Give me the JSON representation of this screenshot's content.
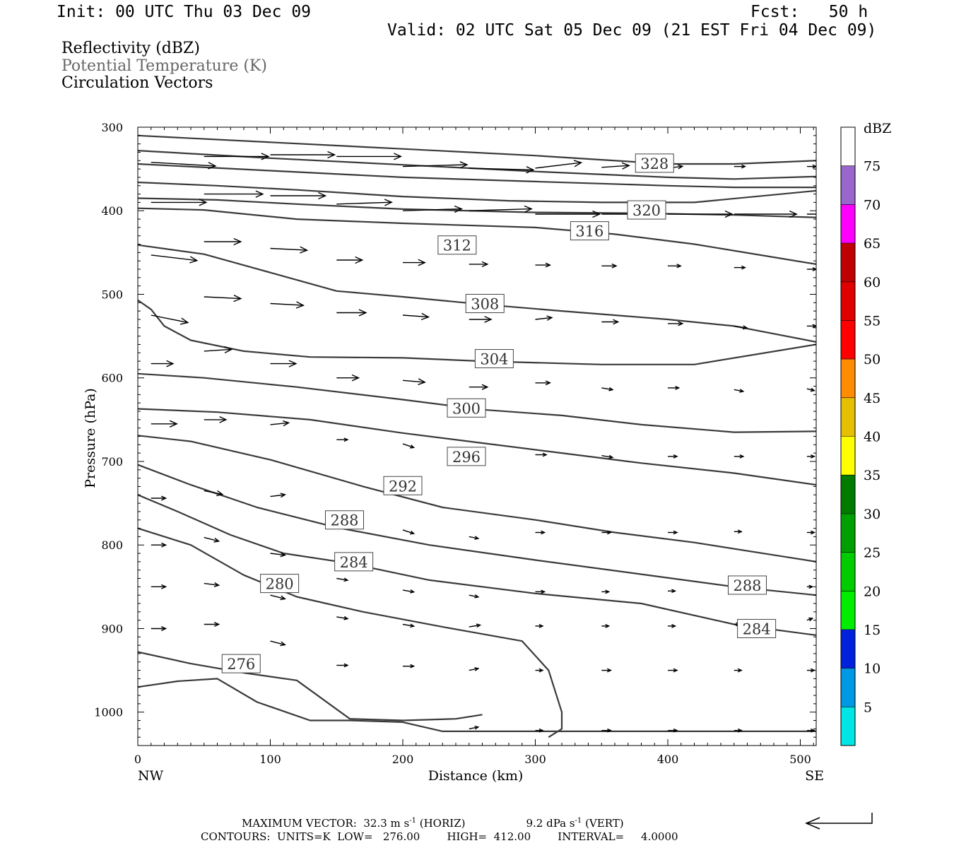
{
  "header": {
    "init": "Init: 00 UTC Thu 03 Dec 09",
    "fcst": "Fcst:   50 h",
    "valid": "Valid: 02 UTC Sat 05 Dec 09 (21 EST Fri 04 Dec 09)"
  },
  "fields": [
    "Reflectivity (dBZ)",
    "Potential Temperature (K)",
    "Circulation Vectors"
  ],
  "colors": {
    "contour": "#3a3a3a",
    "potential_temperature_text": "#666666",
    "dbz_scale": [
      "#00e5e5",
      "#0099e6",
      "#0022dd",
      "#00ee00",
      "#00cc00",
      "#00a000",
      "#007a00",
      "#ffff00",
      "#e6c000",
      "#ff8c00",
      "#ff0000",
      "#e00000",
      "#c00000",
      "#ff00ff",
      "#9966cc",
      "#ffffff"
    ]
  },
  "chart_data": {
    "type": "cross-section",
    "xlabel": "Distance (km)",
    "ylabel": "Pressure (hPa)",
    "xlim": [
      0,
      512
    ],
    "ylim": [
      300,
      1040
    ],
    "x_ticks": [
      0,
      100,
      200,
      300,
      400,
      500
    ],
    "y_ticks": [
      300,
      400,
      500,
      600,
      700,
      800,
      900,
      1000
    ],
    "x_end_labels": {
      "left": "NW",
      "right": "SE"
    },
    "colorbar": {
      "title": "dBZ",
      "labels": [
        "5",
        "10",
        "15",
        "20",
        "25",
        "30",
        "35",
        "40",
        "45",
        "50",
        "55",
        "60",
        "65",
        "70",
        "75"
      ]
    },
    "contour_labels": [
      {
        "text": "328",
        "x": 390,
        "p": 343
      },
      {
        "text": "320",
        "x": 384,
        "p": 399
      },
      {
        "text": "316",
        "x": 341,
        "p": 424
      },
      {
        "text": "312",
        "x": 241,
        "p": 441
      },
      {
        "text": "308",
        "x": 262,
        "p": 511
      },
      {
        "text": "304",
        "x": 269,
        "p": 577
      },
      {
        "text": "300",
        "x": 248,
        "p": 636
      },
      {
        "text": "296",
        "x": 248,
        "p": 694
      },
      {
        "text": "292",
        "x": 200,
        "p": 729
      },
      {
        "text": "288",
        "x": 156,
        "p": 770
      },
      {
        "text": "284",
        "x": 163,
        "p": 820
      },
      {
        "text": "280",
        "x": 107,
        "p": 846
      },
      {
        "text": "276",
        "x": 78,
        "p": 942
      },
      {
        "text": "288",
        "x": 460,
        "p": 848
      },
      {
        "text": "284",
        "x": 467,
        "p": 900
      }
    ],
    "isentropes": [
      {
        "x": [
          0,
          100,
          200,
          300,
          350,
          400,
          450,
          512
        ],
        "p": [
          310,
          318,
          326,
          334,
          339,
          344,
          344,
          340
        ]
      },
      {
        "x": [
          0,
          100,
          200,
          300,
          400,
          450,
          512
        ],
        "p": [
          328,
          337,
          345,
          353,
          360,
          362,
          359
        ]
      },
      {
        "x": [
          0,
          100,
          200,
          300,
          400,
          450,
          512
        ],
        "p": [
          344,
          352,
          360,
          365,
          370,
          372,
          372
        ]
      },
      {
        "x": [
          0,
          60,
          120,
          200,
          280,
          350,
          420,
          512
        ],
        "p": [
          366,
          370,
          375,
          383,
          388,
          390,
          390,
          376
        ]
      },
      {
        "x": [
          0,
          60,
          120,
          200,
          300,
          380,
          450,
          512
        ],
        "p": [
          385,
          387,
          392,
          398,
          402,
          403,
          405,
          408
        ]
      },
      {
        "x": [
          0,
          50,
          120,
          200,
          300,
          360,
          420,
          512
        ],
        "p": [
          397,
          399,
          410,
          415,
          420,
          428,
          440,
          464
        ]
      },
      {
        "x": [
          0,
          50,
          100,
          150,
          200,
          260,
          320,
          400,
          450,
          512
        ],
        "p": [
          441,
          452,
          474,
          496,
          503,
          512,
          520,
          530,
          538,
          557
        ]
      },
      {
        "x": [
          0,
          10,
          20,
          40,
          80,
          130,
          200,
          260,
          350,
          420,
          512
        ],
        "p": [
          507,
          518,
          538,
          555,
          568,
          575,
          576,
          580,
          584,
          584,
          560
        ]
      },
      {
        "x": [
          0,
          50,
          120,
          200,
          260,
          320,
          380,
          450,
          512
        ],
        "p": [
          595,
          600,
          611,
          626,
          638,
          645,
          656,
          665,
          664
        ]
      },
      {
        "x": [
          0,
          60,
          130,
          200,
          260,
          320,
          380,
          450,
          512
        ],
        "p": [
          637,
          641,
          650,
          666,
          678,
          690,
          702,
          714,
          728
        ]
      },
      {
        "x": [
          0,
          40,
          100,
          170,
          230,
          300,
          360,
          420,
          480,
          512
        ],
        "p": [
          669,
          676,
          698,
          730,
          755,
          770,
          785,
          797,
          812,
          820
        ]
      },
      {
        "x": [
          0,
          40,
          90,
          150,
          220,
          300,
          380,
          450,
          512
        ],
        "p": [
          704,
          728,
          755,
          779,
          800,
          818,
          835,
          850,
          860
        ]
      },
      {
        "x": [
          0,
          30,
          70,
          110,
          160,
          220,
          300,
          380,
          450,
          512
        ],
        "p": [
          740,
          760,
          788,
          810,
          822,
          842,
          858,
          870,
          895,
          908
        ]
      },
      {
        "x": [
          0,
          40,
          80,
          120,
          170,
          230,
          290,
          310,
          320,
          320,
          310
        ],
        "p": [
          780,
          800,
          836,
          862,
          880,
          898,
          915,
          950,
          1000,
          1020,
          1030
        ]
      },
      {
        "x": [
          0,
          40,
          80,
          120,
          160,
          200,
          240,
          260
        ],
        "p": [
          928,
          942,
          953,
          962,
          1008,
          1010,
          1008,
          1003
        ]
      },
      {
        "x": [
          0,
          30,
          60,
          90,
          130,
          160,
          200,
          230,
          512
        ],
        "p": [
          970,
          963,
          960,
          988,
          1010,
          1010,
          1012,
          1023,
          1023
        ]
      }
    ],
    "vectors": [
      {
        "x": [
          10,
          50,
          100,
          150,
          200,
          250,
          300,
          350,
          400,
          450,
          505
        ],
        "p": [
          342,
          335,
          333,
          335,
          347,
          349,
          349,
          348,
          349,
          347,
          347
        ],
        "u": [
          35,
          35,
          35,
          35,
          35,
          35,
          25,
          15,
          8,
          6,
          5
        ],
        "w": [
          2,
          0,
          0,
          0,
          -1,
          1,
          -3,
          -1,
          -1,
          0,
          0
        ]
      },
      {
        "x": [
          10,
          50,
          100,
          150,
          200,
          250,
          300,
          350,
          400,
          450,
          505
        ],
        "p": [
          390,
          380,
          382,
          392,
          400,
          400,
          404,
          404,
          404,
          404,
          404
        ],
        "u": [
          30,
          32,
          30,
          30,
          32,
          34,
          35,
          35,
          35,
          34,
          10
        ],
        "w": [
          0,
          0,
          0,
          -1,
          -1,
          -1,
          0,
          0,
          0,
          0,
          0
        ]
      },
      {
        "x": [
          10,
          50,
          100,
          150,
          200,
          250,
          300,
          350,
          400,
          450,
          505
        ],
        "p": [
          453,
          437,
          445,
          459,
          462,
          464,
          465,
          466,
          466,
          468,
          470
        ],
        "u": [
          25,
          20,
          20,
          14,
          12,
          10,
          8,
          8,
          7,
          6,
          5
        ],
        "w": [
          3,
          0,
          1,
          0,
          0,
          0,
          0,
          0,
          0,
          0,
          0
        ]
      },
      {
        "x": [
          10,
          50,
          100,
          150,
          200,
          250,
          300,
          350,
          400,
          450,
          505
        ],
        "p": [
          525,
          503,
          511,
          522,
          525,
          530,
          530,
          533,
          535,
          538,
          538
        ],
        "u": [
          20,
          20,
          18,
          16,
          14,
          12,
          9,
          9,
          8,
          7,
          5
        ],
        "w": [
          4,
          1,
          1,
          0,
          1,
          0,
          -1,
          0,
          0,
          1,
          0
        ]
      },
      {
        "x": [
          10,
          50,
          100,
          150,
          200,
          250,
          300,
          350,
          400,
          450,
          505
        ],
        "p": [
          583,
          568,
          583,
          600,
          603,
          611,
          606,
          612,
          612,
          614,
          613
        ],
        "u": [
          12,
          15,
          14,
          12,
          12,
          10,
          8,
          6,
          6,
          5,
          4
        ],
        "w": [
          0,
          -1,
          0,
          0,
          1,
          0,
          0,
          1,
          0,
          1,
          1
        ]
      },
      {
        "x": [
          10,
          50,
          100,
          150,
          200,
          250,
          300,
          350,
          400,
          450,
          505
        ],
        "p": [
          655,
          650,
          656,
          674,
          679,
          693,
          692,
          693,
          694,
          694,
          694
        ],
        "u": [
          14,
          12,
          10,
          6,
          6,
          5,
          6,
          6,
          5,
          5,
          4
        ],
        "w": [
          0,
          0,
          -1,
          0,
          2,
          1,
          0,
          1,
          0,
          0,
          0
        ]
      },
      {
        "x": [
          10,
          50,
          100,
          150,
          200,
          250,
          300,
          350,
          400,
          450,
          505
        ],
        "p": [
          744,
          735,
          742,
          768,
          782,
          790,
          785,
          785,
          785,
          784,
          785
        ],
        "u": [
          8,
          10,
          8,
          6,
          6,
          5,
          5,
          5,
          5,
          4,
          4
        ],
        "w": [
          0,
          2,
          -1,
          1,
          2,
          1,
          0,
          0,
          0,
          0,
          0
        ]
      },
      {
        "x": [
          10,
          50,
          100,
          150,
          200,
          250,
          300,
          350,
          400,
          450,
          505
        ],
        "p": [
          800,
          791,
          810,
          840,
          854,
          860,
          856,
          856,
          855,
          852,
          850
        ],
        "u": [
          8,
          8,
          8,
          6,
          6,
          5,
          5,
          4,
          4,
          3,
          3
        ],
        "w": [
          0,
          2,
          1,
          1,
          1,
          1,
          0,
          0,
          0,
          0,
          0
        ]
      },
      {
        "x": [
          10,
          50,
          100,
          150,
          200,
          250,
          300,
          350,
          400,
          450,
          505
        ],
        "p": [
          850,
          846,
          860,
          886,
          895,
          898,
          897,
          897,
          897,
          895,
          890
        ],
        "u": [
          8,
          8,
          8,
          6,
          6,
          6,
          4,
          4,
          4,
          3,
          3
        ],
        "w": [
          0,
          1,
          2,
          1,
          1,
          -1,
          0,
          0,
          0,
          0,
          -1
        ]
      },
      {
        "x": [
          10,
          50,
          100,
          150,
          200,
          250,
          300,
          350,
          400,
          450,
          505
        ],
        "p": [
          900,
          895,
          915,
          944,
          945,
          950,
          950,
          950,
          950,
          950,
          950
        ],
        "u": [
          8,
          8,
          8,
          6,
          6,
          5,
          4,
          5,
          5,
          4,
          4
        ],
        "w": [
          0,
          0,
          2,
          0,
          0,
          -1,
          0,
          0,
          0,
          0,
          0
        ]
      },
      {
        "x": [
          250,
          300,
          350,
          400,
          450,
          505
        ],
        "p": [
          1020,
          1022,
          1022,
          1022,
          1022,
          1022
        ],
        "u": [
          5,
          4,
          5,
          5,
          4,
          4
        ],
        "w": [
          -1,
          0,
          0,
          0,
          0,
          0
        ]
      }
    ]
  },
  "footer": {
    "max_vector": "MAXIMUM VECTOR:  32.3 m s",
    "sup1": "-1",
    "horiz": " (HORIZ)",
    "vert_val": "9.2 dPa s",
    "sup2": "-1",
    "vert": " (VERT)",
    "contours": "CONTOURS:  UNITS=K  LOW=   276.00        HIGH=  412.00        INTERVAL=     4.0000"
  }
}
